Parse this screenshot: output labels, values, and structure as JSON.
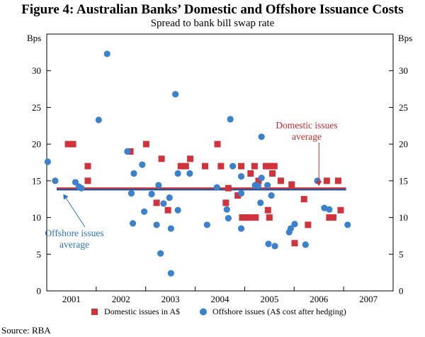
{
  "chart_data": {
    "type": "scatter",
    "title": "Figure 4: Australian Banks’ Domestic and Offshore Issuance Costs",
    "subtitle": "Spread to bank bill swap rate",
    "ylabel_left": "Bps",
    "ylabel_right": "Bps",
    "ylim": [
      0,
      35
    ],
    "yticks": [
      0,
      5,
      10,
      15,
      20,
      25,
      30
    ],
    "xlim": [
      2000.5,
      2007.5
    ],
    "xticks": [
      {
        "label": "2001",
        "x": 2001
      },
      {
        "label": "2002",
        "x": 2002
      },
      {
        "label": "2003",
        "x": 2003
      },
      {
        "label": "2004",
        "x": 2004
      },
      {
        "label": "2005",
        "x": 2005
      },
      {
        "label": "2006",
        "x": 2006
      },
      {
        "label": "2007",
        "x": 2007
      }
    ],
    "grid": false,
    "series": [
      {
        "name": "Domestic issues in A$",
        "marker": "square",
        "color": "#d0333c",
        "points": [
          [
            2000.93,
            20
          ],
          [
            2001.03,
            20
          ],
          [
            2001.33,
            17
          ],
          [
            2001.33,
            15
          ],
          [
            2002.19,
            19
          ],
          [
            2002.51,
            20
          ],
          [
            2002.72,
            12
          ],
          [
            2002.82,
            18
          ],
          [
            2002.95,
            11
          ],
          [
            2003.21,
            17
          ],
          [
            2003.31,
            17
          ],
          [
            2003.4,
            18
          ],
          [
            2003.7,
            17
          ],
          [
            2003.95,
            20
          ],
          [
            2004.02,
            17
          ],
          [
            2004.12,
            12
          ],
          [
            2004.17,
            14
          ],
          [
            2004.36,
            13
          ],
          [
            2004.43,
            17
          ],
          [
            2004.45,
            10
          ],
          [
            2004.51,
            10
          ],
          [
            2004.57,
            10
          ],
          [
            2004.62,
            16
          ],
          [
            2004.65,
            10
          ],
          [
            2004.7,
            17
          ],
          [
            2004.72,
            10
          ],
          [
            2004.78,
            15
          ],
          [
            2004.93,
            17
          ],
          [
            2004.97,
            11
          ],
          [
            2005.0,
            10
          ],
          [
            2005.01,
            17
          ],
          [
            2005.06,
            16
          ],
          [
            2005.1,
            17
          ],
          [
            2005.23,
            15
          ],
          [
            2005.45,
            14.5
          ],
          [
            2005.51,
            6.5
          ],
          [
            2005.7,
            12.5
          ],
          [
            2005.78,
            9
          ],
          [
            2006.16,
            15
          ],
          [
            2006.21,
            10
          ],
          [
            2006.29,
            10
          ],
          [
            2006.39,
            15
          ],
          [
            2006.44,
            11
          ]
        ]
      },
      {
        "name": "Offshore issues (A$ cost after hedging)",
        "marker": "circle",
        "color": "#3a82cd",
        "points": [
          [
            2000.52,
            17.6
          ],
          [
            2000.67,
            15
          ],
          [
            2001.08,
            14.8
          ],
          [
            2001.15,
            14.2
          ],
          [
            2001.2,
            14
          ],
          [
            2001.55,
            23.3
          ],
          [
            2001.72,
            32.3
          ],
          [
            2002.13,
            19
          ],
          [
            2002.21,
            13.3
          ],
          [
            2002.24,
            9.2
          ],
          [
            2002.26,
            16
          ],
          [
            2002.43,
            17.2
          ],
          [
            2002.47,
            10.8
          ],
          [
            2002.62,
            13.2
          ],
          [
            2002.72,
            9
          ],
          [
            2002.76,
            14.4
          ],
          [
            2002.8,
            5.1
          ],
          [
            2002.86,
            11.9
          ],
          [
            2002.98,
            12.7
          ],
          [
            2003.01,
            2.4
          ],
          [
            2003.01,
            8.5
          ],
          [
            2003.1,
            26.8
          ],
          [
            2003.15,
            16
          ],
          [
            2003.15,
            11
          ],
          [
            2003.39,
            16
          ],
          [
            2003.74,
            9
          ],
          [
            2003.94,
            14.1
          ],
          [
            2004.14,
            11.1
          ],
          [
            2004.17,
            9.9
          ],
          [
            2004.21,
            23.4
          ],
          [
            2004.26,
            17
          ],
          [
            2004.43,
            15.6
          ],
          [
            2004.43,
            13.3
          ],
          [
            2004.43,
            8.5
          ],
          [
            2004.71,
            14.4
          ],
          [
            2004.77,
            14.3
          ],
          [
            2004.82,
            12
          ],
          [
            2004.84,
            21
          ],
          [
            2004.84,
            15.4
          ],
          [
            2004.96,
            14.4
          ],
          [
            2004.98,
            6.4
          ],
          [
            2005.04,
            13
          ],
          [
            2005.11,
            6.1
          ],
          [
            2005.4,
            8
          ],
          [
            2005.43,
            8.5
          ],
          [
            2005.51,
            9.1
          ],
          [
            2005.73,
            6.3
          ],
          [
            2005.97,
            15
          ],
          [
            2006.11,
            11.3
          ],
          [
            2006.21,
            11.1
          ],
          [
            2006.58,
            9
          ]
        ]
      }
    ],
    "averages": [
      {
        "name": "Domestic issues average",
        "value": 14.0,
        "color": "#d0333c",
        "x_range": [
          2000.7,
          2006.55
        ]
      },
      {
        "name": "Offshore issues average",
        "value": 13.8,
        "color": "#1f4e8c",
        "x_range": [
          2000.7,
          2006.55
        ]
      }
    ],
    "annotations": [
      {
        "text_lines": [
          "Domestic issues",
          "average"
        ],
        "color": "#cc2a30",
        "anchor": "above-right",
        "arrow_to": [
          2006.0,
          14.2
        ]
      },
      {
        "text_lines": [
          "Offshore issues",
          "average"
        ],
        "color": "#2e73c0",
        "anchor": "below-left",
        "arrow_to": [
          2000.8,
          13.5
        ]
      }
    ],
    "legend": {
      "placement": "bottom",
      "entries": [
        "Domestic issues in A$",
        "Offshore issues (A$ cost after hedging)"
      ]
    },
    "source": "Source: RBA"
  }
}
